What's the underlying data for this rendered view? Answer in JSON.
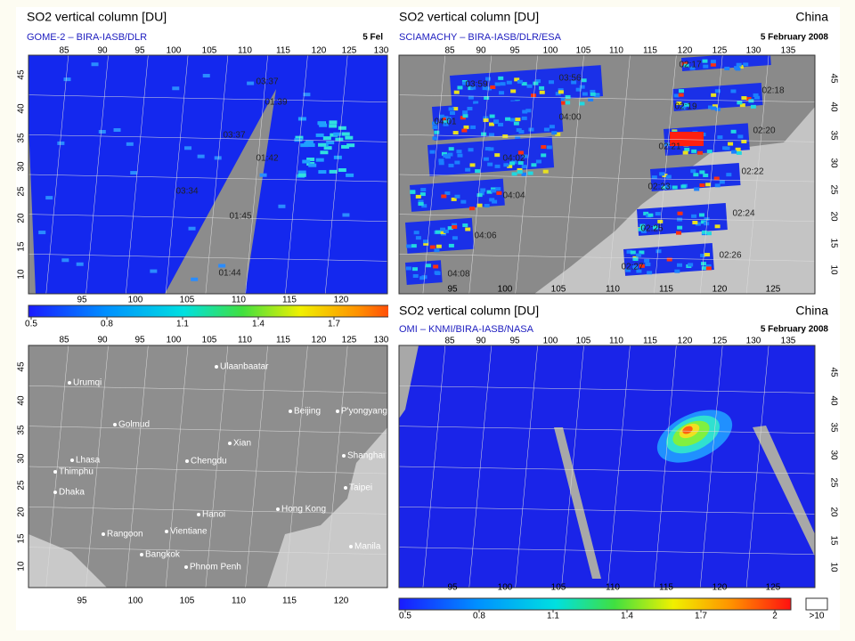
{
  "panels": [
    {
      "title": "SO2 vertical column [DU]",
      "subtitle": "GOME-2 – BIRA-IASB/DLR",
      "date": "5 Fel",
      "lon_ticks_top": [
        85,
        90,
        95,
        100,
        105,
        110,
        115,
        120,
        125,
        130
      ],
      "lon_ticks_bottom": [
        95,
        100,
        105,
        110,
        115,
        120
      ],
      "lat_ticks": [
        45,
        40,
        35,
        30,
        25,
        20,
        15,
        10
      ],
      "orbit_labels": [
        "03:37",
        "01:39",
        "03:37",
        "01:42",
        "03:34",
        "01:45",
        "01:44"
      ],
      "colorbar": {
        "clim": [
          0.5,
          2.0
        ],
        "ticks": [
          0.5,
          0.8,
          1.1,
          1.4,
          1.7
        ]
      }
    },
    {
      "lon_ticks_top": [
        85,
        90,
        95,
        100,
        105,
        110,
        115,
        120,
        125,
        130
      ],
      "lon_ticks_bottom": [
        95,
        100,
        105,
        110,
        115,
        120
      ],
      "lat_ticks": [
        45,
        40,
        35,
        30,
        25,
        20,
        15,
        10
      ],
      "cities": [
        "Urumqi",
        "Ulaanbaatar",
        "Golmud",
        "Beijing",
        "P'yongyang",
        "Xian",
        "Lhasa",
        "Chengdu",
        "Shanghai",
        "Thimphu",
        "Dhaka",
        "Taipei",
        "Hanoi",
        "Hong Kong",
        "Rangoon",
        "Vientiane",
        "Bangkok",
        "Phnom Penh",
        "Manila"
      ]
    },
    {
      "title": "SO2 vertical column [DU]",
      "region": "China",
      "subtitle": "SCIAMACHY – BIRA-IASB/DLR/ESA",
      "date": "5 February 2008",
      "lon_ticks_top": [
        85,
        90,
        95,
        100,
        105,
        110,
        115,
        120,
        125,
        130,
        135
      ],
      "lon_ticks_bottom": [
        95,
        100,
        105,
        110,
        115,
        120,
        125
      ],
      "lat_ticks": [
        45,
        40,
        35,
        30,
        25,
        20,
        15,
        10
      ],
      "orbit_labels": [
        "03:59",
        "03:56",
        "02:17",
        "02:18",
        "02:19",
        "04:01",
        "04:00",
        "02:20",
        "02:21",
        "04:02",
        "02:22",
        "02:23",
        "04:04",
        "02:24",
        "04:06",
        "02:25",
        "02:26",
        "04:08",
        "02:27"
      ]
    },
    {
      "title": "SO2 vertical column [DU]",
      "region": "China",
      "subtitle": "OMI – KNMI/BIRA-IASB/NASA",
      "date": "5 February 2008",
      "lon_ticks_top": [
        85,
        90,
        95,
        100,
        105,
        110,
        115,
        120,
        125,
        130,
        135
      ],
      "lon_ticks_bottom": [
        95,
        100,
        105,
        110,
        115,
        120,
        125
      ],
      "lat_ticks": [
        45,
        40,
        35,
        30,
        25,
        20,
        15,
        10
      ],
      "colorbar": {
        "clim": [
          0.5,
          2.0
        ],
        "ticks": [
          0.5,
          0.8,
          1.1,
          1.4,
          1.7,
          2.0
        ],
        "overflow_label": ">10"
      }
    }
  ]
}
